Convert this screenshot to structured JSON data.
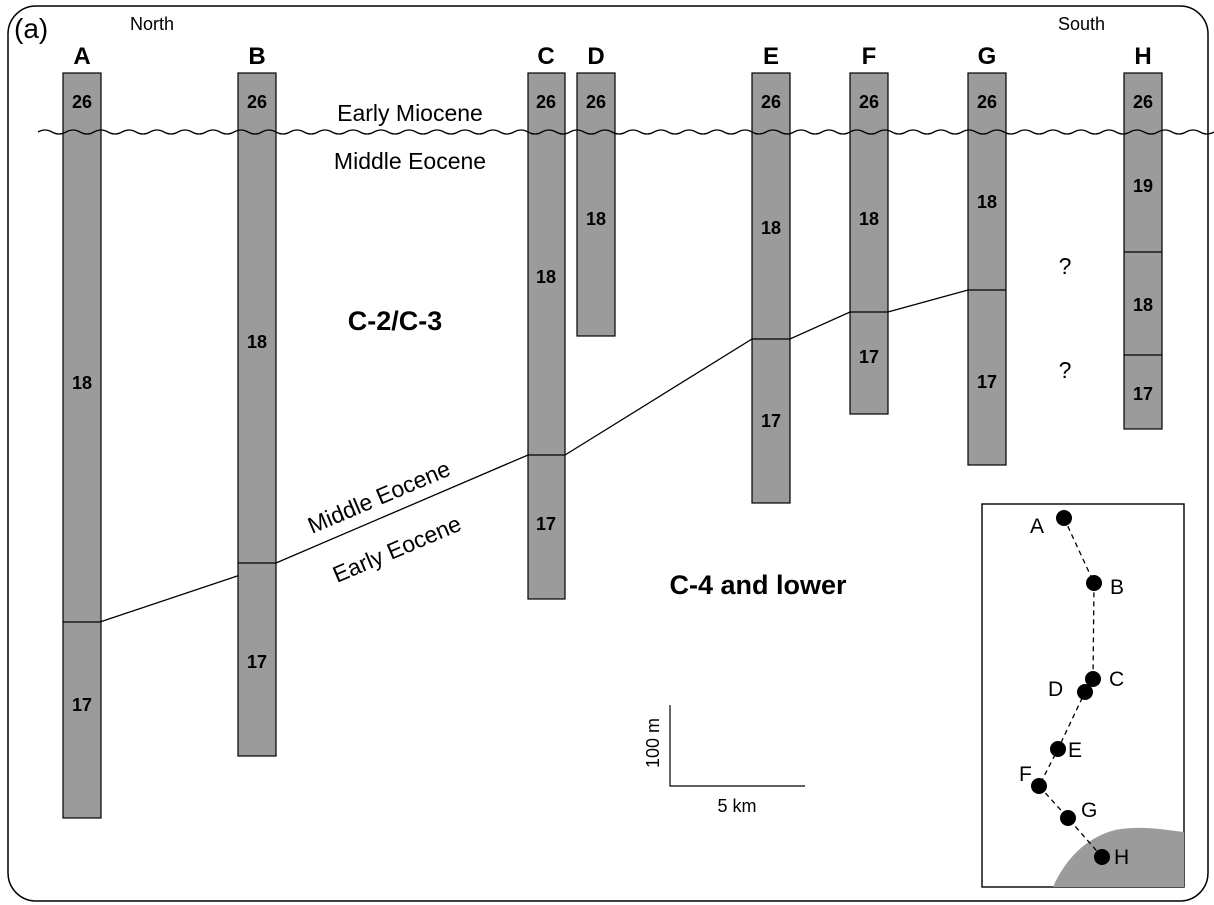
{
  "panel_label": "(a)",
  "direction": {
    "left": "North",
    "right": "South"
  },
  "columns": [
    {
      "name": "A",
      "segments": [
        "26",
        "18",
        "17"
      ]
    },
    {
      "name": "B",
      "segments": [
        "26",
        "18",
        "17"
      ]
    },
    {
      "name": "C",
      "segments": [
        "26",
        "18",
        "17"
      ]
    },
    {
      "name": "D",
      "segments": [
        "26",
        "18"
      ]
    },
    {
      "name": "E",
      "segments": [
        "26",
        "18",
        "17"
      ]
    },
    {
      "name": "F",
      "segments": [
        "26",
        "18",
        "17"
      ]
    },
    {
      "name": "G",
      "segments": [
        "26",
        "18",
        "17"
      ]
    },
    {
      "name": "H",
      "segments": [
        "26",
        "19",
        "18",
        "17"
      ]
    }
  ],
  "unconformity": {
    "above": "Early Miocene",
    "below": "Middle Eocene"
  },
  "boundary": {
    "above": "Middle Eocene",
    "below": "Early Eocene"
  },
  "zones": {
    "upper": "C-2/C-3",
    "lower": "C-4 and lower"
  },
  "unknowns": [
    "?",
    "?"
  ],
  "scale_bar": {
    "vertical": "100 m",
    "horizontal": "5 km"
  },
  "inset_map": {
    "wells": [
      "A",
      "B",
      "C",
      "D",
      "E",
      "F",
      "G",
      "H"
    ]
  },
  "colors": {
    "column_fill": "#9b9b9b",
    "line": "#000000"
  }
}
